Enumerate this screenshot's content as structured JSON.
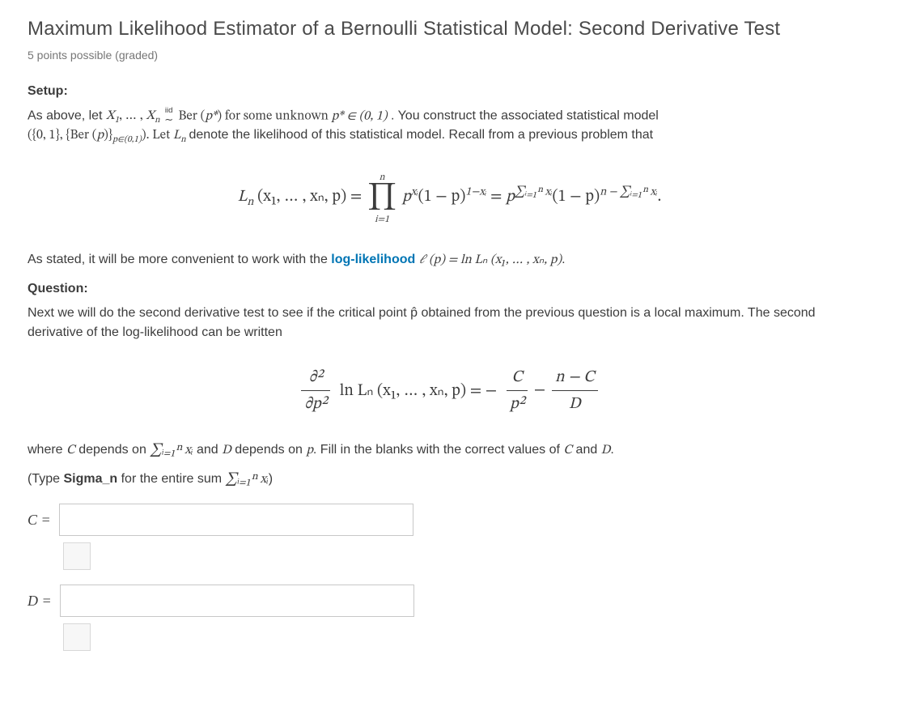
{
  "title": "Maximum Likelihood Estimator of a Bernoulli Statistical Model: Second Derivative Test",
  "points_line": "5 points possible (graded)",
  "setup": {
    "label": "Setup:",
    "line1_pre": "As above, let ",
    "line1_X": "X",
    "line1_sub1": "1",
    "line1_dots": ", … , ",
    "line1_subn": "n",
    "iid_top": "iid",
    "iid_bot": "∼",
    "line1_ber": " Ber (",
    "line1_pstar": "p*",
    "line1_after_ber": ") for some unknown ",
    "line1_pstar2": "p* ∈ (0, 1)",
    "line1_tail": ". You construct the associated statistical model",
    "line2_model_open": "({0, 1}, {Ber (",
    "line2_p": "p",
    "line2_model_mid": ")}",
    "line2_sub": "p∈(0,1)",
    "line2_model_close": "). Let ",
    "line2_Ln": "L",
    "line2_Ln_sub": "n",
    "line2_tail": " denote the likelihood of this statistical model. Recall from a previous problem that"
  },
  "eq1": {
    "Ln": "L",
    "n": "n",
    "args": " (x₁, … , xₙ, p) = ",
    "prod_top": "n",
    "prod_bot": "i=1",
    "term1": "p",
    "term1_exp": "xᵢ",
    "term2": "(1 − p)",
    "term2_exp": "1−xᵢ",
    "eq": " = ",
    "p2": "p",
    "p2_exp": "∑ᵢ₌₁ⁿ xᵢ",
    "q2": "(1 − p)",
    "q2_exp": "n − ∑ᵢ₌₁ⁿ xᵢ",
    "dot": "."
  },
  "midline": {
    "pre": "As stated, it will be more convenient to work with the ",
    "link": "log-likelihood",
    "post": " ",
    "ell": "ℓ (p) = ln Lₙ (x₁, … , xₙ, p)",
    "dot": "."
  },
  "question": {
    "label": "Question:",
    "para": "Next we will do the second derivative test to see if the critical point p̂ obtained from the previous question is a local maximum. The second derivative of the log-likelihood can be written"
  },
  "eq2": {
    "d2_num": "∂²",
    "d2_den": "∂p²",
    "ln": "ln Lₙ (x₁, … , xₙ, p) = −",
    "C": "C",
    "p2": "p²",
    "minus": " − ",
    "nC": "n − C",
    "D": "D"
  },
  "where_line": {
    "pre": "where ",
    "C": "C",
    "mid1": " depends on ",
    "sum": "∑ᵢ₌₁ⁿ xᵢ",
    "mid2": " and ",
    "D": "D",
    "mid3": " depends on ",
    "p": "p",
    "tail": ". Fill in the blanks with the correct values of ",
    "C2": "C",
    "and": " and ",
    "D2": "D",
    "dot": "."
  },
  "type_hint": {
    "pre": "(Type ",
    "sigma": "Sigma_n",
    "mid": " for the entire sum ",
    "sum": "∑ᵢ₌₁ⁿ xᵢ",
    "post": ")"
  },
  "answers": {
    "C_label": "C =",
    "C_value": "",
    "D_label": "D =",
    "D_value": ""
  }
}
